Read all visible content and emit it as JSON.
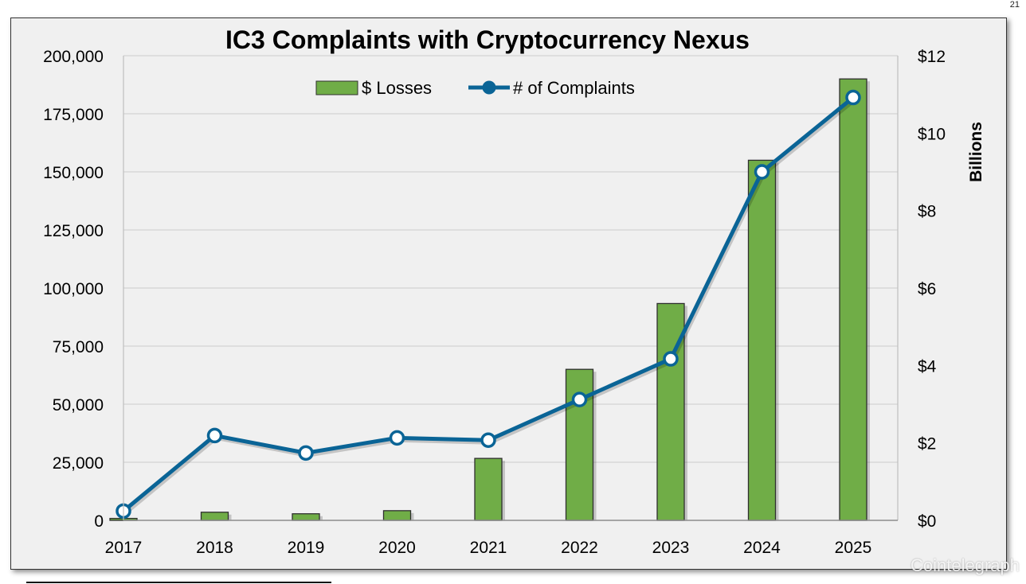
{
  "page_number": "21",
  "watermark": "Cointelegraph",
  "colors": {
    "bar_fill": "#70ad47",
    "bar_stroke": "#2f2f2f",
    "line": "#0a6496",
    "marker_fill": "#ffffff",
    "grid": "#d4d4d4",
    "frame_bg": "#f0f0f0"
  },
  "chart_data": {
    "type": "bar",
    "title": "IC3 Complaints with Cryptocurrency Nexus",
    "categories": [
      "2017",
      "2018",
      "2019",
      "2020",
      "2021",
      "2022",
      "2023",
      "2024",
      "2025"
    ],
    "series": [
      {
        "name": "$ Losses",
        "type": "bar",
        "axis": "right",
        "values": [
          0.05,
          0.21,
          0.17,
          0.25,
          1.6,
          3.9,
          5.6,
          9.3,
          11.4
        ]
      },
      {
        "name": "# of Complaints",
        "type": "line",
        "axis": "left",
        "values": [
          4000,
          36500,
          29000,
          35500,
          34500,
          52000,
          69500,
          150000,
          182000
        ]
      }
    ],
    "y_left": {
      "lim": [
        0,
        200000
      ],
      "ticks": [
        0,
        25000,
        50000,
        75000,
        100000,
        125000,
        150000,
        175000,
        200000
      ],
      "tick_labels": [
        "0",
        "25,000",
        "50,000",
        "75,000",
        "100,000",
        "125,000",
        "150,000",
        "175,000",
        "200,000"
      ]
    },
    "y_right": {
      "label": "Billions",
      "lim": [
        0,
        12
      ],
      "ticks": [
        0,
        2,
        4,
        6,
        8,
        10,
        12
      ],
      "tick_labels": [
        "$0",
        "$2",
        "$4",
        "$6",
        "$8",
        "$10",
        "$12"
      ]
    },
    "grid": true,
    "legend_position": "top-center"
  }
}
